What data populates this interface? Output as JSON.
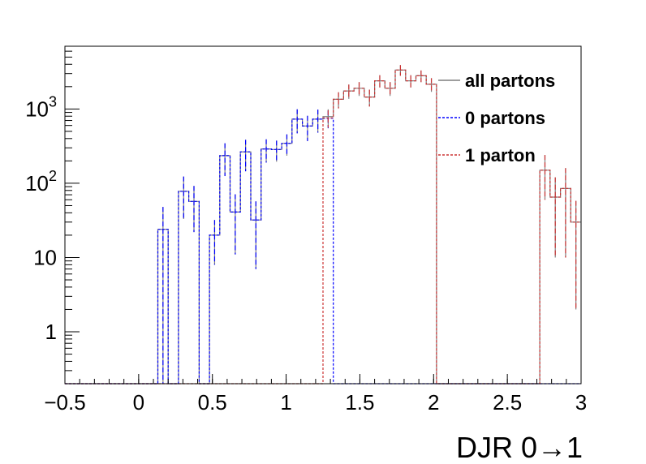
{
  "chart_data": {
    "type": "step",
    "xlabel": "DJR 0→1",
    "ylabel": "",
    "title": "",
    "xlim": [
      -0.5,
      3.0
    ],
    "ylim": [
      0.2,
      7000
    ],
    "yscale": "log",
    "grid": false,
    "legend_position": "top-right",
    "x_ticks": [
      "−0.5",
      "0",
      "0.5",
      "1",
      "1.5",
      "2",
      "2.5",
      "3"
    ],
    "x_tick_values": [
      -0.5,
      0,
      0.5,
      1,
      1.5,
      2,
      2.5,
      3
    ],
    "y_ticks": [
      {
        "base": "1",
        "exp": "",
        "value": 1
      },
      {
        "base": "10",
        "exp": "",
        "value": 10
      },
      {
        "base": "10",
        "exp": "2",
        "value": 100
      },
      {
        "base": "10",
        "exp": "3",
        "value": 1000
      }
    ],
    "bin_edges": [
      -0.5,
      -0.43,
      -0.36,
      -0.29,
      -0.22,
      -0.15,
      -0.08,
      -0.01,
      0.06,
      0.13,
      0.2,
      0.27,
      0.34,
      0.41,
      0.48,
      0.55,
      0.62,
      0.69,
      0.76,
      0.83,
      0.9,
      0.97,
      1.04,
      1.11,
      1.18,
      1.25,
      1.32,
      1.39,
      1.46,
      1.53,
      1.6,
      1.67,
      1.74,
      1.81,
      1.88,
      1.95,
      2.02,
      2.09,
      2.16,
      2.23,
      2.3,
      2.37,
      2.44,
      2.51,
      2.58,
      2.65,
      2.72,
      2.79,
      2.86,
      2.93,
      3.0
    ],
    "series": [
      {
        "name": "all partons",
        "color": "#7f7f7f",
        "style": "solid",
        "values": [
          0,
          0,
          0,
          0,
          0,
          0,
          0,
          0,
          0,
          24,
          0,
          78,
          57,
          0,
          20,
          235,
          41,
          265,
          32,
          290,
          285,
          345,
          730,
          590,
          730,
          790,
          1350,
          1750,
          1900,
          1450,
          2400,
          1900,
          3350,
          2400,
          2800,
          2150,
          0,
          0,
          0,
          0,
          0,
          0,
          0,
          0,
          0,
          0,
          150,
          65,
          85,
          30
        ],
        "errors": [
          0,
          0,
          0,
          0,
          0,
          0,
          0,
          0,
          0,
          24,
          0,
          45,
          35,
          0,
          12,
          110,
          30,
          120,
          25,
          100,
          90,
          110,
          260,
          220,
          250,
          200,
          330,
          380,
          400,
          370,
          450,
          400,
          550,
          450,
          500,
          450,
          0,
          0,
          0,
          0,
          0,
          0,
          0,
          0,
          0,
          0,
          90,
          55,
          75,
          28
        ]
      },
      {
        "name": "0 partons",
        "color": "#0000ff",
        "style": "dotted",
        "values": [
          0,
          0,
          0,
          0,
          0,
          0,
          0,
          0,
          0,
          24,
          0,
          78,
          57,
          0,
          20,
          235,
          41,
          265,
          32,
          290,
          285,
          345,
          730,
          590,
          730,
          750,
          0,
          0,
          0,
          0,
          0,
          0,
          0,
          0,
          0,
          0,
          0,
          0,
          0,
          0,
          0,
          0,
          0,
          0,
          0,
          0,
          0,
          0,
          0,
          0
        ],
        "errors": [
          0,
          0,
          0,
          0,
          0,
          0,
          0,
          0,
          0,
          24,
          0,
          45,
          35,
          0,
          12,
          110,
          30,
          120,
          25,
          100,
          90,
          110,
          260,
          220,
          250,
          200,
          0,
          0,
          0,
          0,
          0,
          0,
          0,
          0,
          0,
          0,
          0,
          0,
          0,
          0,
          0,
          0,
          0,
          0,
          0,
          0,
          0,
          0,
          0,
          0
        ]
      },
      {
        "name": "1 parton",
        "color": "#cc3333",
        "style": "dotted",
        "values": [
          0,
          0,
          0,
          0,
          0,
          0,
          0,
          0,
          0,
          0,
          0,
          0,
          0,
          0,
          0,
          0,
          0,
          0,
          0,
          0,
          0,
          0,
          0,
          0,
          0,
          760,
          1350,
          1750,
          1900,
          1450,
          2400,
          1900,
          3350,
          2400,
          2800,
          2150,
          0,
          0,
          0,
          0,
          0,
          0,
          0,
          0,
          0,
          0,
          150,
          65,
          85,
          30
        ],
        "errors": [
          0,
          0,
          0,
          0,
          0,
          0,
          0,
          0,
          0,
          0,
          0,
          0,
          0,
          0,
          0,
          0,
          0,
          0,
          0,
          0,
          0,
          0,
          0,
          0,
          0,
          200,
          330,
          380,
          400,
          370,
          450,
          400,
          550,
          450,
          500,
          450,
          0,
          0,
          0,
          0,
          0,
          0,
          0,
          0,
          0,
          0,
          90,
          55,
          75,
          28
        ]
      }
    ]
  }
}
